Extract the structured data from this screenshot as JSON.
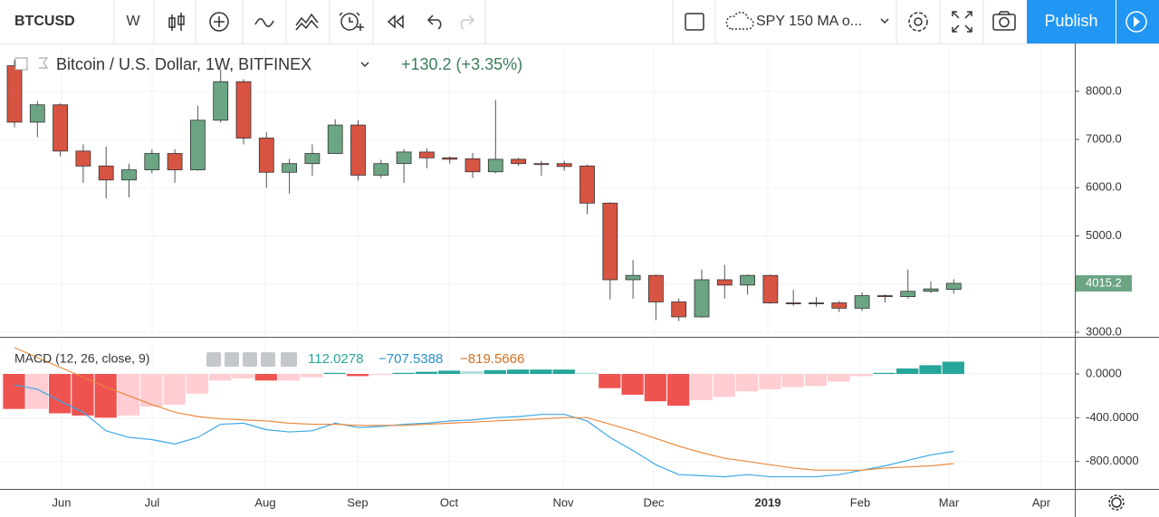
{
  "toolbar": {
    "symbol": "BTCUSD",
    "interval": "W",
    "study": "SPY 150 MA o...",
    "publish": "Publish"
  },
  "chart_data": [
    {
      "type": "candlestick",
      "title": "Bitcoin / U.S. Dollar, 1W, BITFINEX",
      "change": "+130.2 (+3.35%)",
      "up_color": "#6ba583",
      "down_color": "#d75442",
      "open": [
        8530,
        7360,
        7720,
        6760,
        6450,
        6160,
        6370,
        6710,
        6370,
        7400,
        8200,
        7030,
        6320,
        6500,
        6710,
        7300,
        6260,
        6500,
        6740,
        6620,
        6600,
        6330,
        6590,
        6500,
        6500,
        6450,
        5680,
        4090,
        4180,
        3630,
        3320,
        4090,
        3980,
        4180,
        3610,
        3590,
        3610,
        3500,
        3760,
        3740,
        3850,
        3890
      ],
      "high": [
        8650,
        7800,
        7750,
        6900,
        6850,
        6500,
        6800,
        6800,
        7700,
        8450,
        8250,
        7150,
        6600,
        6900,
        7420,
        7400,
        6580,
        6800,
        6820,
        6650,
        6720,
        7820,
        6620,
        6560,
        6560,
        6480,
        5700,
        4500,
        4200,
        3700,
        4300,
        4400,
        4200,
        4200,
        3880,
        3730,
        3650,
        3830,
        3790,
        4300,
        4050,
        4100
      ],
      "low": [
        7250,
        7050,
        6650,
        6100,
        5780,
        5800,
        6300,
        6100,
        6350,
        7350,
        6900,
        6000,
        5880,
        6250,
        6700,
        6150,
        6200,
        6100,
        6400,
        6500,
        6200,
        6300,
        6450,
        6250,
        6350,
        5450,
        3680,
        3700,
        3250,
        3230,
        3300,
        3700,
        3780,
        3590,
        3550,
        3530,
        3420,
        3440,
        3620,
        3700,
        3820,
        3800
      ],
      "close": [
        7360,
        7720,
        6760,
        6450,
        6160,
        6370,
        6710,
        6370,
        7400,
        8200,
        7030,
        6320,
        6500,
        6710,
        7300,
        6260,
        6500,
        6740,
        6620,
        6590,
        6330,
        6590,
        6500,
        6480,
        6440,
        5680,
        4090,
        4180,
        3630,
        3320,
        4090,
        3980,
        4180,
        3610,
        3590,
        3610,
        3500,
        3760,
        3740,
        3850,
        3900,
        4015.2
      ],
      "ylim": [
        2906,
        8974
      ],
      "yticks": [
        {
          "value": 3000,
          "label": "3000.0"
        },
        {
          "value": 4000,
          "label": "4000.0"
        },
        {
          "value": 5000,
          "label": "5000.0"
        },
        {
          "value": 6000,
          "label": "6000.0"
        },
        {
          "value": 7000,
          "label": "7000.0"
        },
        {
          "value": 8000,
          "label": "8000.0"
        }
      ],
      "x_labels": [
        "Jun",
        "Jul",
        "Aug",
        "Sep",
        "Oct",
        "Nov",
        "Dec",
        "2019",
        "Feb",
        "Mar",
        "Apr"
      ],
      "grid": true
    },
    {
      "type": "macd",
      "title": "MACD (12, 26, close, 9)",
      "legend_values": [
        "112.0278",
        "−707.5388",
        "−819.5666"
      ],
      "histogram": [
        -320,
        -320,
        -360,
        -380,
        -400,
        -380,
        -300,
        -280,
        -180,
        -60,
        -40,
        -60,
        -60,
        -30,
        10,
        -20,
        -10,
        10,
        20,
        30,
        25,
        35,
        40,
        40,
        40,
        10,
        -130,
        -190,
        -250,
        -290,
        -240,
        -210,
        -160,
        -140,
        -120,
        -110,
        -70,
        -20,
        10,
        50,
        80,
        112.0278
      ],
      "series": [
        {
          "name": "MACD",
          "color": "#3ea8e5",
          "values": [
            -100,
            -140,
            -250,
            -350,
            -520,
            -580,
            -600,
            -640,
            -580,
            -460,
            -450,
            -510,
            -530,
            -520,
            -450,
            -490,
            -480,
            -460,
            -450,
            -430,
            -420,
            -400,
            -390,
            -370,
            -370,
            -430,
            -580,
            -700,
            -830,
            -920,
            -930,
            -940,
            -920,
            -940,
            -940,
            -940,
            -920,
            -880,
            -840,
            -790,
            -740,
            -707.5388
          ]
        },
        {
          "name": "Signal",
          "color": "#e98a3c",
          "values": [
            240,
            150,
            60,
            -30,
            -120,
            -200,
            -280,
            -350,
            -390,
            -410,
            -420,
            -430,
            -450,
            -460,
            -460,
            -470,
            -470,
            -470,
            -460,
            -450,
            -440,
            -430,
            -420,
            -410,
            -400,
            -400,
            -460,
            -520,
            -590,
            -660,
            -720,
            -770,
            -800,
            -830,
            -860,
            -880,
            -880,
            -880,
            -860,
            -850,
            -840,
            -819.5666
          ]
        }
      ],
      "histogram_colors": {
        "pos_up": "#26a69a",
        "pos_down": "#b2dfdb",
        "neg_down": "#ef5350",
        "neg_up": "#ffcdd2"
      },
      "ylim": [
        -1051,
        331
      ],
      "yticks": [
        {
          "value": -800,
          "label": "-800.0000"
        },
        {
          "value": -400,
          "label": "-400.0000"
        },
        {
          "value": 0,
          "label": "0.0000"
        }
      ],
      "grid": true
    }
  ]
}
